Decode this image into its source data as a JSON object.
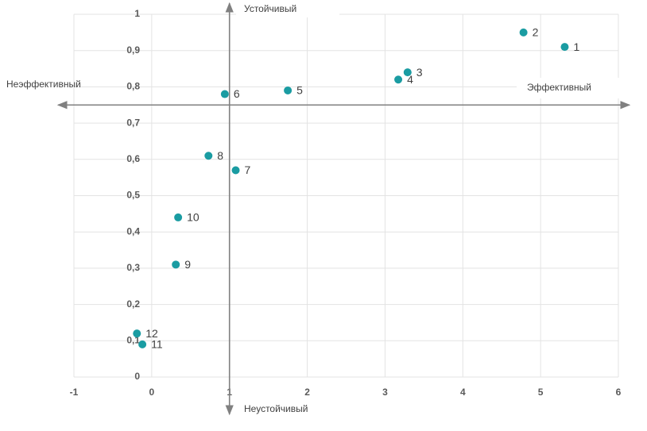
{
  "chart_data": {
    "type": "scatter",
    "x": [
      5.31,
      4.78,
      3.29,
      3.17,
      1.75,
      0.94,
      1.08,
      0.73,
      0.31,
      0.34,
      -0.12,
      -0.19
    ],
    "values": [
      0.91,
      0.95,
      0.84,
      0.82,
      0.79,
      0.78,
      0.57,
      0.61,
      0.31,
      0.44,
      0.09,
      0.12
    ],
    "labels": [
      "1",
      "2",
      "3",
      "4",
      "5",
      "6",
      "7",
      "8",
      "9",
      "10",
      "11",
      "12"
    ],
    "color": "#1a9ca2",
    "xlim": [
      -1,
      6
    ],
    "xticks": [
      -1,
      0,
      1,
      2,
      3,
      4,
      5,
      6
    ],
    "ylim": [
      0,
      1
    ],
    "yticks": [
      0,
      {
        "value": 0.1,
        "label": "0,1"
      },
      {
        "value": 0.2,
        "label": "0,2"
      },
      {
        "value": 0.3,
        "label": "0,3"
      },
      {
        "value": 0.4,
        "label": "0,4"
      },
      {
        "value": 0.5,
        "label": "0,5"
      },
      {
        "value": 0.6,
        "label": "0,6"
      },
      {
        "value": 0.7,
        "label": "0,7"
      },
      {
        "value": 0.8,
        "label": "0,8"
      },
      {
        "value": 0.9,
        "label": "0,9"
      },
      1
    ],
    "grid": true,
    "reference_lines": {
      "x": 1,
      "y": 0.75
    },
    "annotations": {
      "top": "Устойчивый",
      "bottom": "Неустойчивый",
      "left": "Неэффективный",
      "right": "Эффективный"
    }
  }
}
